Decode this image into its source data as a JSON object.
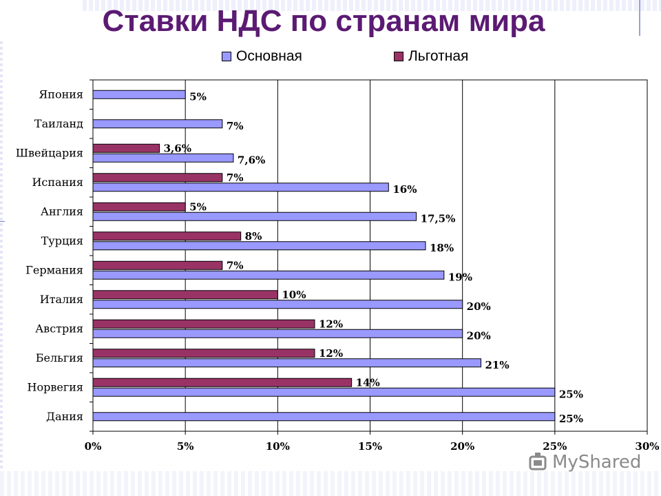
{
  "colors": {
    "title": "#5b1a73",
    "basic": "#9999ff",
    "reduced": "#993366"
  },
  "watermark": {
    "text": "MyShared"
  },
  "chart_data": {
    "type": "bar",
    "orientation": "horizontal",
    "title": "Ставки НДС по странам мира",
    "legend_placement": "top",
    "grid": true,
    "xlim": [
      0,
      30
    ],
    "x_ticks": [
      "0%",
      "5%",
      "10%",
      "15%",
      "20%",
      "25%",
      "30%"
    ],
    "categories": [
      "Япония",
      "Таиланд",
      "Швейцария",
      "Испания",
      "Англия",
      "Турция",
      "Германия",
      "Италия",
      "Австрия",
      "Бельгия",
      "Норвегия",
      "Дания"
    ],
    "series": [
      {
        "name": "Основная",
        "color": "#9999ff",
        "values": [
          5,
          7,
          7.6,
          16,
          17.5,
          18,
          19,
          20,
          20,
          21,
          25,
          25
        ],
        "labels": [
          "5%",
          "7%",
          "7,6%",
          "16%",
          "17,5%",
          "18%",
          "19%",
          "20%",
          "20%",
          "21%",
          "25%",
          "25%"
        ]
      },
      {
        "name": "Льготная",
        "color": "#993366",
        "values": [
          null,
          null,
          3.6,
          7,
          5,
          8,
          7,
          10,
          12,
          12,
          14,
          null
        ],
        "labels": [
          "",
          "",
          "3,6%",
          "7%",
          "5%",
          "8%",
          "7%",
          "10%",
          "12%",
          "12%",
          "14%",
          ""
        ]
      }
    ]
  }
}
